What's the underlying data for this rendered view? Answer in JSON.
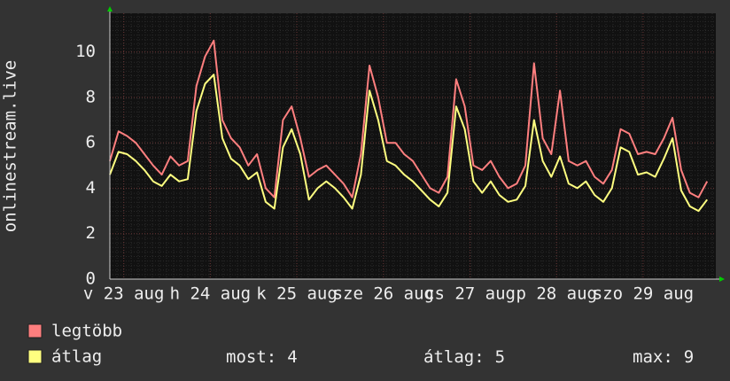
{
  "chart_data": {
    "type": "line",
    "y_label": "onlinestream.live",
    "x": [
      0,
      0.1,
      0.2,
      0.3,
      0.4,
      0.5,
      0.6,
      0.7,
      0.8,
      0.9,
      1,
      1.1,
      1.2,
      1.3,
      1.4,
      1.5,
      1.6,
      1.7,
      1.8,
      1.9,
      2,
      2.1,
      2.2,
      2.3,
      2.4,
      2.5,
      2.6,
      2.7,
      2.8,
      2.9,
      3,
      3.1,
      3.2,
      3.3,
      3.4,
      3.5,
      3.6,
      3.7,
      3.8,
      3.9,
      4,
      4.1,
      4.2,
      4.3,
      4.4,
      4.5,
      4.6,
      4.7,
      4.8,
      4.9,
      5,
      5.1,
      5.2,
      5.3,
      5.4,
      5.5,
      5.6,
      5.7,
      5.8,
      5.9,
      6,
      6.1,
      6.2,
      6.3,
      6.4,
      6.5,
      6.6,
      6.7,
      6.8,
      6.9
    ],
    "series": [
      {
        "name": "legtöbb",
        "color": "#ff7f7f",
        "values": [
          5.2,
          6.5,
          6.3,
          6.0,
          5.5,
          5.0,
          4.6,
          5.4,
          5.0,
          5.2,
          8.5,
          9.8,
          10.5,
          7.0,
          6.2,
          5.8,
          5.0,
          5.5,
          4.0,
          3.6,
          7.0,
          7.6,
          6.2,
          4.5,
          4.8,
          5.0,
          4.6,
          4.2,
          3.6,
          5.5,
          9.4,
          8.0,
          6.0,
          6.0,
          5.5,
          5.2,
          4.6,
          4.0,
          3.8,
          4.5,
          8.8,
          7.6,
          5.0,
          4.8,
          5.2,
          4.5,
          4.0,
          4.2,
          5.0,
          9.5,
          6.2,
          5.5,
          8.3,
          5.2,
          5.0,
          5.2,
          4.5,
          4.2,
          4.8,
          6.6,
          6.4,
          5.5,
          5.6,
          5.5,
          6.2,
          7.1,
          4.8,
          3.8,
          3.6,
          4.3
        ]
      },
      {
        "name": "átlag",
        "color": "#ffff80",
        "values": [
          4.6,
          5.6,
          5.5,
          5.2,
          4.8,
          4.3,
          4.1,
          4.6,
          4.3,
          4.4,
          7.4,
          8.6,
          9.0,
          6.2,
          5.3,
          5.0,
          4.4,
          4.7,
          3.4,
          3.1,
          5.8,
          6.6,
          5.5,
          3.5,
          4.0,
          4.3,
          4.0,
          3.6,
          3.1,
          4.6,
          8.3,
          7.0,
          5.2,
          5.0,
          4.6,
          4.3,
          3.9,
          3.5,
          3.2,
          3.8,
          7.6,
          6.6,
          4.3,
          3.8,
          4.3,
          3.7,
          3.4,
          3.5,
          4.1,
          7.0,
          5.2,
          4.5,
          5.4,
          4.2,
          4.0,
          4.3,
          3.7,
          3.4,
          4.0,
          5.8,
          5.6,
          4.6,
          4.7,
          4.5,
          5.3,
          6.2,
          3.9,
          3.2,
          3.0,
          3.5
        ]
      }
    ],
    "xlim": [
      0,
      7
    ],
    "xticks": [
      {
        "value": 0.16,
        "label": "v 23 aug"
      },
      {
        "value": 1.16,
        "label": "h 24 aug"
      },
      {
        "value": 2.16,
        "label": "k 25 aug"
      },
      {
        "value": 3.16,
        "label": "sze 26 aug"
      },
      {
        "value": 4.16,
        "label": "cs 27 aug"
      },
      {
        "value": 5.16,
        "label": "p 28 aug"
      },
      {
        "value": 6.16,
        "label": "szo 29 aug"
      }
    ],
    "ylim": [
      0,
      11.7
    ],
    "yticks": [
      0,
      2,
      4,
      6,
      8,
      10
    ],
    "grid": true,
    "stats": [
      {
        "label": "most:",
        "value": 4
      },
      {
        "label": "átlag:",
        "value": 5
      },
      {
        "label": "max:",
        "value": 9
      }
    ]
  }
}
